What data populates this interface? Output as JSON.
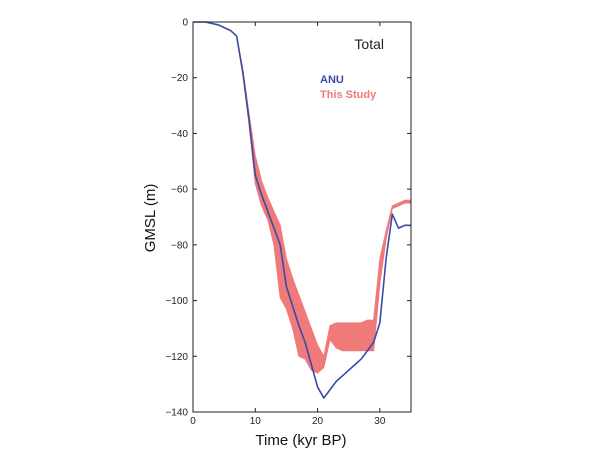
{
  "chart_data": {
    "type": "line",
    "annotation": "Total",
    "xlabel": "Time (kyr BP)",
    "ylabel": "GMSL (m)",
    "xlim": [
      0,
      35
    ],
    "ylim": [
      -140,
      0
    ],
    "x_ticks": [
      0,
      10,
      20,
      30
    ],
    "x_tick_labels": [
      "0",
      "10",
      "20",
      "30"
    ],
    "y_ticks": [
      0,
      -20,
      -40,
      -60,
      -80,
      -100,
      -120,
      -140
    ],
    "y_tick_labels": [
      "0",
      "−20",
      "−40",
      "−60",
      "−80",
      "−100",
      "−120",
      "−140"
    ],
    "grid": false,
    "legend_position": "top-right",
    "series": [
      {
        "name": "ANU",
        "style": "line",
        "color": "#3b4aa8",
        "x": [
          0,
          2,
          4,
          6,
          7,
          8,
          9,
          10,
          11,
          12,
          13,
          14,
          15,
          16,
          17,
          18,
          19,
          20,
          21,
          22,
          23,
          24,
          25,
          26,
          27,
          28,
          29,
          30,
          31,
          32,
          33,
          34,
          35
        ],
        "y": [
          0,
          0,
          -1,
          -3,
          -5,
          -18,
          -35,
          -55,
          -62,
          -68,
          -74,
          -80,
          -95,
          -102,
          -109,
          -115,
          -123,
          -131,
          -135,
          -132,
          -129,
          -127,
          -125,
          -123,
          -121,
          -118,
          -115,
          -108,
          -85,
          -69,
          -74,
          -73,
          -73
        ]
      },
      {
        "name": "This Study",
        "style": "band",
        "color": "#f07a7a",
        "x": [
          0,
          2,
          4,
          6,
          7,
          8,
          9,
          10,
          11,
          12,
          13,
          14,
          15,
          16,
          17,
          18,
          19,
          20,
          21,
          22,
          23,
          24,
          25,
          26,
          27,
          28,
          29,
          30,
          31,
          32,
          33,
          34,
          35
        ],
        "upper": [
          0,
          0,
          -1,
          -3,
          -5,
          -17,
          -33,
          -48,
          -57,
          -63,
          -68,
          -73,
          -85,
          -92,
          -98,
          -104,
          -110,
          -116,
          -120,
          -109,
          -108,
          -108,
          -108,
          -108,
          -108,
          -107,
          -107,
          -85,
          -75,
          -66,
          -65,
          -64,
          -64
        ],
        "lower": [
          0,
          0,
          -1,
          -3,
          -5,
          -19,
          -37,
          -58,
          -66,
          -71,
          -80,
          -99,
          -103,
          -110,
          -120,
          -121,
          -125,
          -126,
          -124,
          -114,
          -117,
          -118,
          -118,
          -118,
          -118,
          -118,
          -118,
          -94,
          -78,
          -67,
          -66,
          -65,
          -65
        ]
      }
    ]
  }
}
